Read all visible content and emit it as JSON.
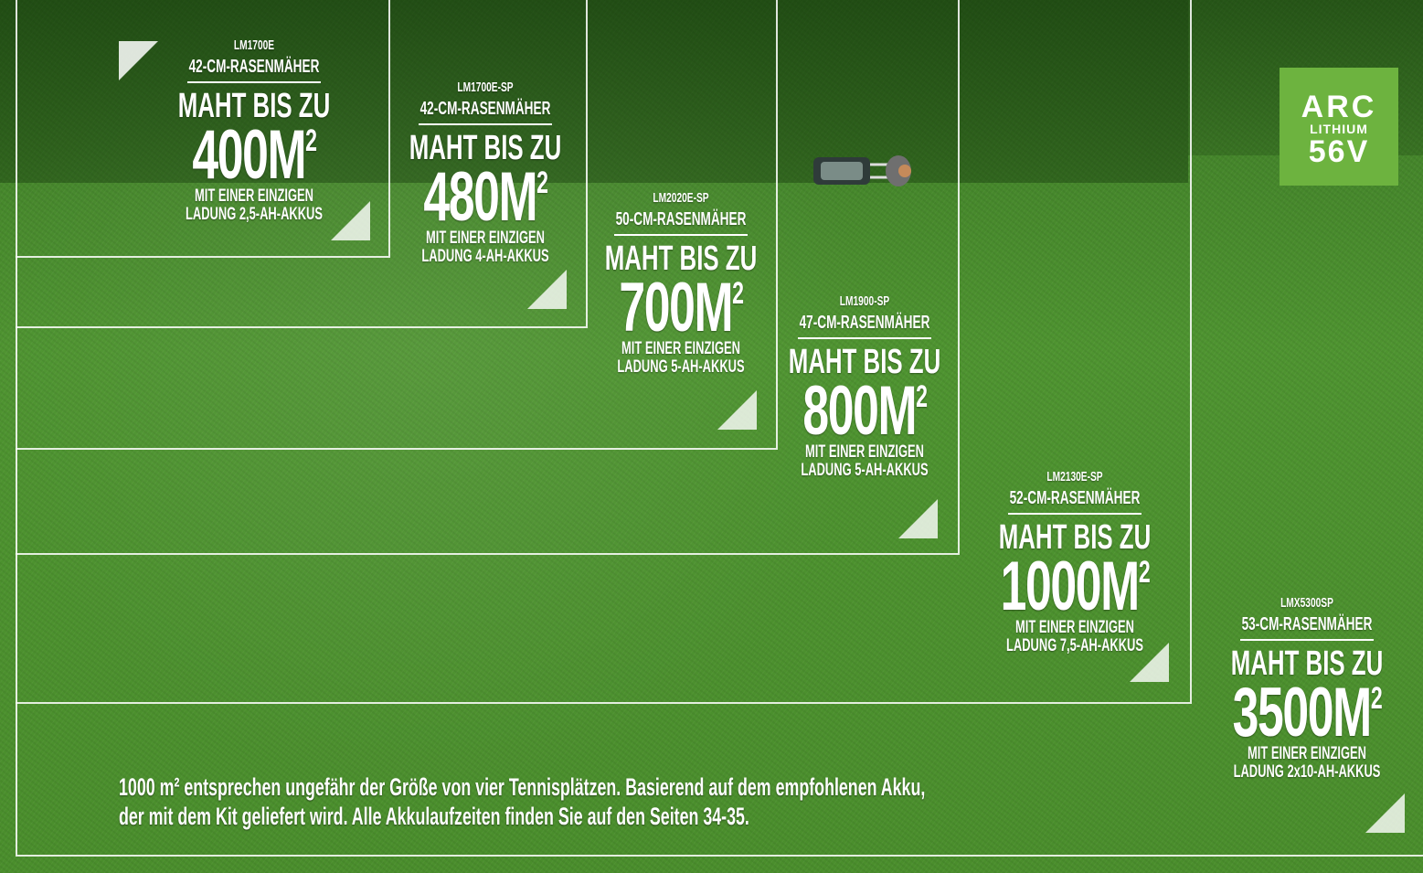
{
  "logo": {
    "brand": "ARC",
    "line": "LITHIUM",
    "voltage": "56V"
  },
  "products": [
    {
      "model": "LM1700E",
      "type": "42-CM-RASENMÄHER",
      "headline": "MAHT BIS ZU",
      "area": "400M",
      "area_exponent": "2",
      "note_1": "MIT EINER EINZIGEN",
      "note_2": "LADUNG 2,5-AH-AKKUS"
    },
    {
      "model": "LM1700E-SP",
      "type": "42-CM-RASENMÄHER",
      "headline": "MAHT BIS ZU",
      "area": "480M",
      "area_exponent": "2",
      "note_1": "MIT EINER EINZIGEN",
      "note_2": "LADUNG 4-AH-AKKUS"
    },
    {
      "model": "LM2020E-SP",
      "type": "50-CM-RASENMÄHER",
      "headline": "MAHT BIS ZU",
      "area": "700M",
      "area_exponent": "2",
      "note_1": "MIT EINER EINZIGEN",
      "note_2": "LADUNG 5-AH-AKKUS"
    },
    {
      "model": "LM1900-SP",
      "type": "47-CM-RASENMÄHER",
      "headline": "MAHT BIS ZU",
      "area": "800M",
      "area_exponent": "2",
      "note_1": "MIT EINER EINZIGEN",
      "note_2": "LADUNG 5-AH-AKKUS"
    },
    {
      "model": "LM2130E-SP",
      "type": "52-CM-RASENMÄHER",
      "headline": "MAHT BIS ZU",
      "area": "1000M",
      "area_exponent": "2",
      "note_1": "MIT EINER EINZIGEN",
      "note_2": "LADUNG 7,5-AH-AKKUS"
    },
    {
      "model": "LMX5300SP",
      "type": "53-CM-RASENMÄHER",
      "headline": "MAHT BIS ZU",
      "area": "3500M",
      "area_exponent": "2",
      "note_1": "MIT EINER EINZIGEN",
      "note_2": "LADUNG 2x10-AH-AKKUS"
    }
  ],
  "footnote": {
    "line_1": "1000 m² entsprechen ungefähr der Größe von vier Tennisplätzen. Basierend auf dem empfohlenen Akku,",
    "line_2": "der mit dem Kit geliefert wird. Alle Akkulaufzeiten finden Sie auf den Seiten 34-35."
  }
}
